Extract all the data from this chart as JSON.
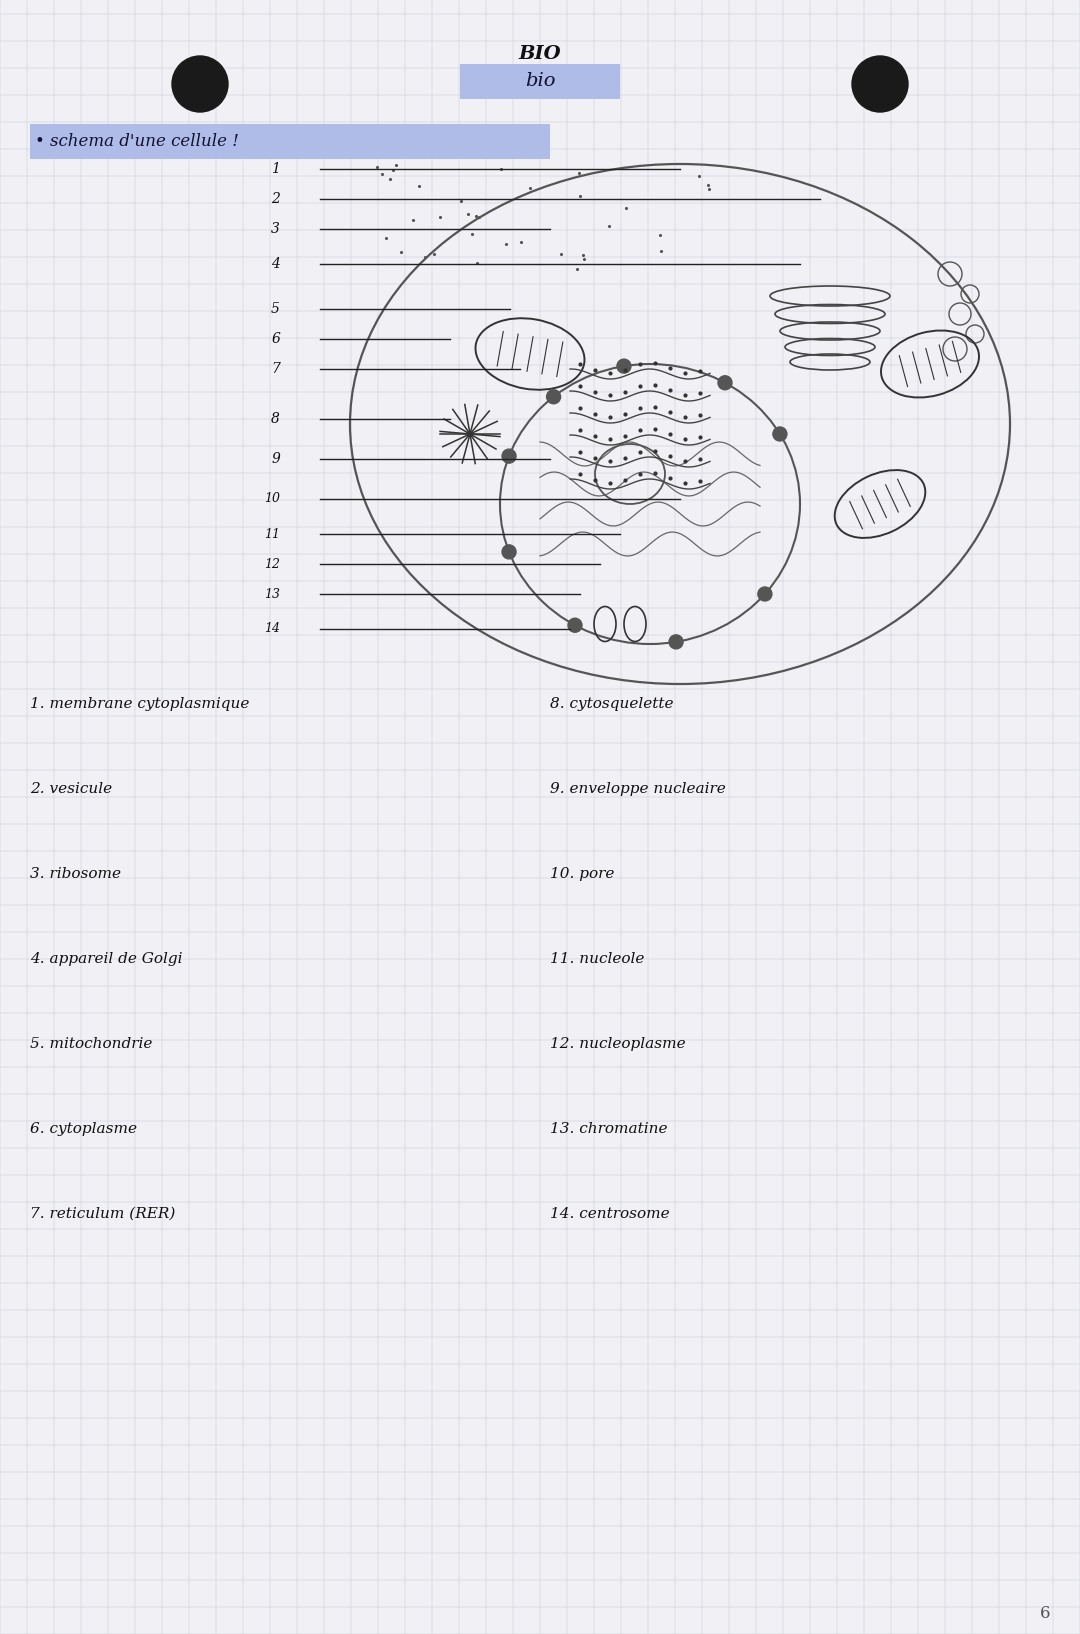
{
  "bg_color": "#f0f0f5",
  "grid_color": "#c8ccd8",
  "labels_left": [
    "1",
    "2",
    "3",
    "4",
    "5",
    "6",
    "7",
    "8",
    "9",
    "10",
    "11",
    "12",
    "13",
    "14"
  ],
  "legend_left": [
    "1. membrane cytoplasmique",
    "2. vesicule",
    "3. ribosome",
    "4. appareil de Golgi",
    "5. mitochondrie",
    "6. cytoplasme",
    "7. reticulum (RER)"
  ],
  "legend_right": [
    "8. cytosquelette",
    "9. enveloppe nucleaire",
    "10. pore",
    "11. nucleole",
    "12. nucleoplasme",
    "13. chromatine",
    "14. centrosome"
  ],
  "page_number": "6"
}
